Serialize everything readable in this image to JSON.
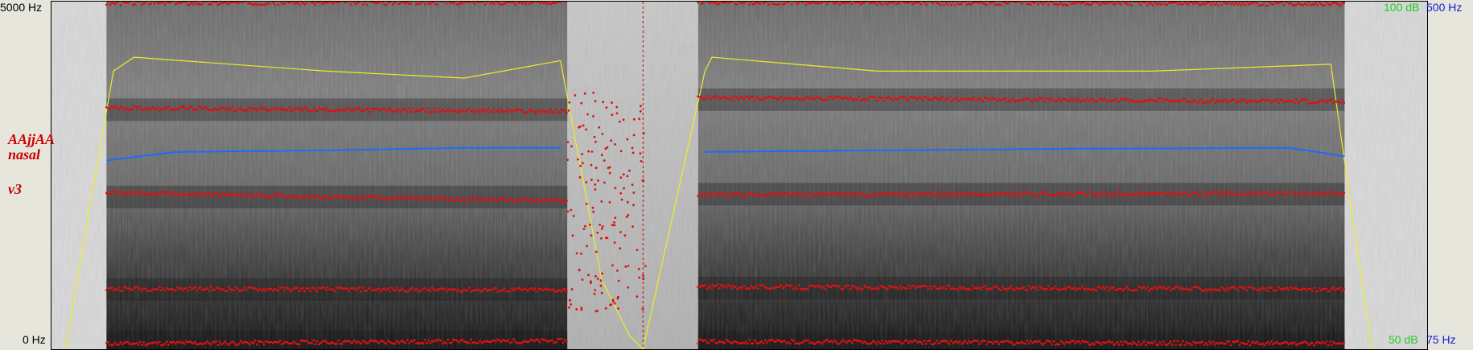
{
  "left_axis": {
    "top": "5000 Hz",
    "bottom": "0 Hz"
  },
  "right_axis": {
    "intensity_top": "100 dB",
    "intensity_bottom": "50 dB",
    "pitch_top": "500 Hz",
    "pitch_bottom": "75 Hz"
  },
  "annotation": {
    "line1": "AAjjAA",
    "line2": "nasal",
    "line3": "v3"
  },
  "colors": {
    "formant": "#dd1111",
    "pitch": "#1a6cff",
    "intensity": "#eeee22",
    "cursor": "#cc0000",
    "intensity_axis": "#22cc22",
    "pitch_axis": "#1a1acc"
  },
  "icons": {
    "cursor": "dashed-vertical-line"
  },
  "spectrogram": {
    "frequency_range_hz": [
      0,
      5000
    ],
    "intensity_range_db": [
      50,
      100
    ],
    "pitch_range_hz": [
      75,
      500
    ],
    "voiced_segments": [
      {
        "start": 0.04,
        "end": 0.375
      },
      {
        "start": 0.47,
        "end": 0.94
      }
    ],
    "gap_noise_segment": {
      "start": 0.375,
      "end": 0.47
    },
    "cursor_position": 0.43,
    "formants_hz": [
      [
        80,
        120,
        110,
        80
      ],
      [
        870,
        850,
        900,
        860
      ],
      [
        2250,
        2130,
        2220,
        2240
      ],
      [
        3470,
        3420,
        3620,
        3560
      ],
      [
        4980,
        4990,
        4990,
        4970
      ]
    ],
    "pitch_hz": [
      {
        "t": 0.04,
        "f": 210
      },
      {
        "t": 0.09,
        "f": 220
      },
      {
        "t": 0.2,
        "f": 222
      },
      {
        "t": 0.3,
        "f": 225
      },
      {
        "t": 0.37,
        "f": 225
      },
      {
        "t": 0.475,
        "f": 220
      },
      {
        "t": 0.6,
        "f": 222
      },
      {
        "t": 0.75,
        "f": 224
      },
      {
        "t": 0.9,
        "f": 225
      },
      {
        "t": 0.94,
        "f": 215
      }
    ],
    "intensity_db": [
      {
        "t": 0.01,
        "v": 50
      },
      {
        "t": 0.045,
        "v": 90
      },
      {
        "t": 0.06,
        "v": 92
      },
      {
        "t": 0.2,
        "v": 90
      },
      {
        "t": 0.3,
        "v": 89
      },
      {
        "t": 0.37,
        "v": 91.5
      },
      {
        "t": 0.4,
        "v": 60
      },
      {
        "t": 0.42,
        "v": 52
      },
      {
        "t": 0.43,
        "v": 50
      },
      {
        "t": 0.475,
        "v": 90
      },
      {
        "t": 0.48,
        "v": 92
      },
      {
        "t": 0.6,
        "v": 90
      },
      {
        "t": 0.8,
        "v": 90
      },
      {
        "t": 0.93,
        "v": 91
      },
      {
        "t": 0.945,
        "v": 70
      },
      {
        "t": 0.96,
        "v": 50
      }
    ]
  }
}
